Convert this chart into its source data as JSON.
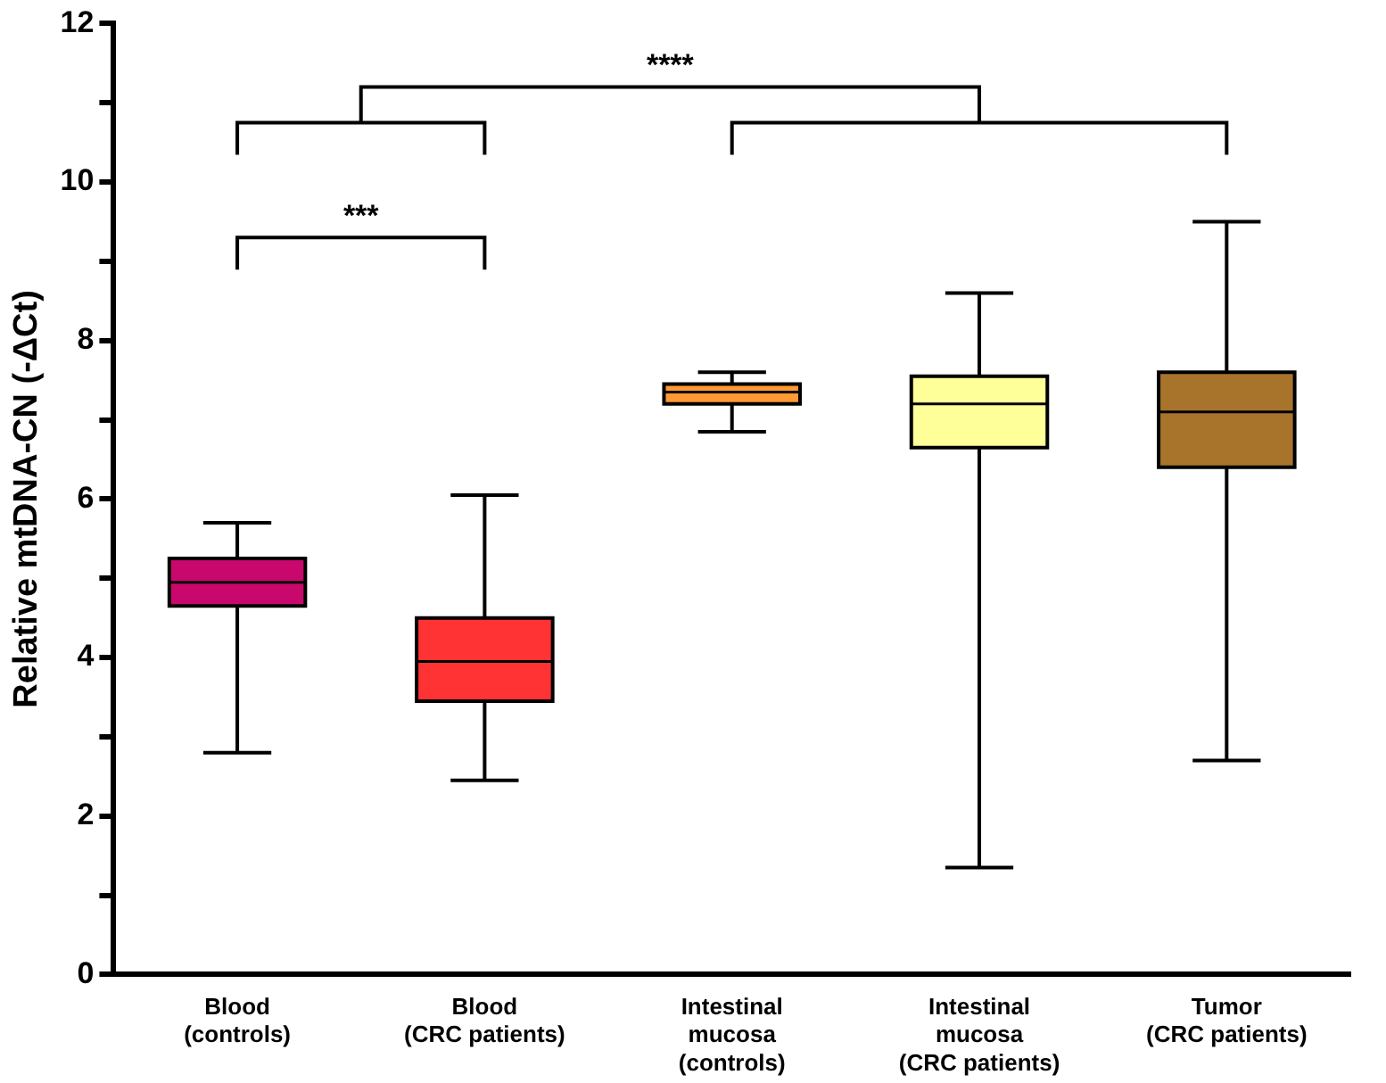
{
  "chart_data": {
    "type": "box",
    "ylabel": "Relative mtDNA-CN (-ΔCt)",
    "categories": [
      "Blood\n(controls)",
      "Blood\n(CRC patients)",
      "Intestinal\nmucosa\n(controls)",
      "Intestinal\nmucosa\n(CRC patients)",
      "Tumor\n(CRC patients)"
    ],
    "colors": [
      "#c8086c",
      "#ff3333",
      "#ff9933",
      "#ffff99",
      "#a8742c"
    ],
    "boxes": [
      {
        "low": 2.8,
        "q1": 4.65,
        "median": 4.95,
        "q3": 5.25,
        "high": 5.7
      },
      {
        "low": 2.45,
        "q1": 3.45,
        "median": 3.95,
        "q3": 4.5,
        "high": 6.05
      },
      {
        "low": 6.85,
        "q1": 7.2,
        "median": 7.35,
        "q3": 7.45,
        "high": 7.6
      },
      {
        "low": 1.35,
        "q1": 6.65,
        "median": 7.2,
        "q3": 7.55,
        "high": 8.6
      },
      {
        "low": 2.7,
        "q1": 6.4,
        "median": 7.1,
        "q3": 7.6,
        "high": 9.5
      }
    ],
    "ylim": [
      0,
      12
    ],
    "yticks": [
      0,
      {
        "value": 1,
        "label": null
      },
      2,
      {
        "value": 3,
        "label": null
      },
      4,
      {
        "value": 5,
        "label": null
      },
      6,
      {
        "value": 7,
        "label": null
      },
      8,
      {
        "value": 9,
        "label": null
      },
      10,
      {
        "value": 11,
        "label": null
      },
      12
    ],
    "grid": false,
    "legend": false,
    "annotations": [
      "***",
      "****"
    ]
  }
}
